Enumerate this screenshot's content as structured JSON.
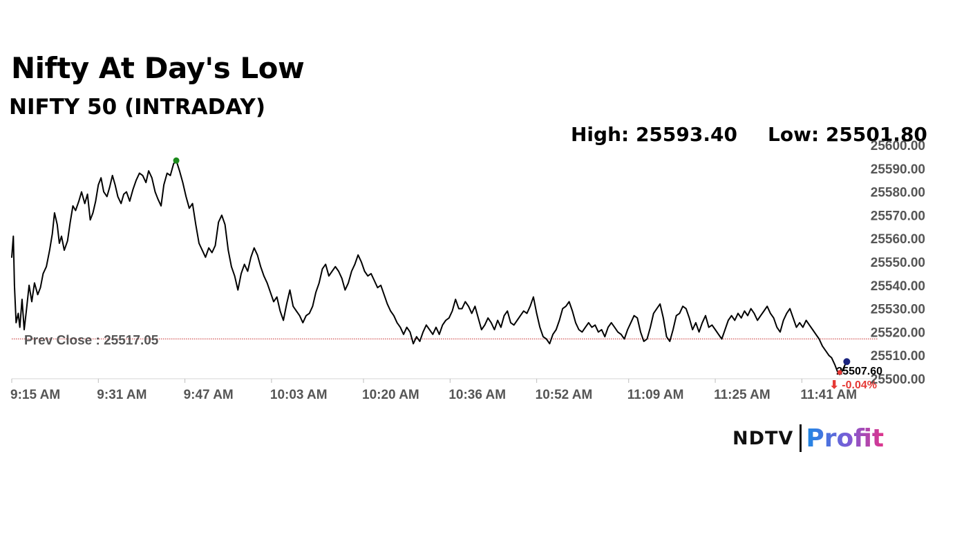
{
  "header": {
    "title": "Nifty At Day's Low",
    "subtitle": "NIFTY 50 (INTRADAY)",
    "high_text": "High: 25593.40",
    "low_text": "Low: 25501.80"
  },
  "logo": {
    "brand": "NDTV",
    "product": "Profit"
  },
  "colors": {
    "line": "#000000",
    "prev_close_line": "#c62828",
    "high_marker": "#1b8a1b",
    "low_marker": "#e53935",
    "last_marker": "#1a237e",
    "change_negative": "#e53935",
    "axis_text": "#555555"
  },
  "chart_data": {
    "type": "line",
    "title": "NIFTY 50 (INTRADAY)",
    "ylim": [
      25500,
      25600
    ],
    "y_ticks": [
      "25600.00",
      "25590.00",
      "25580.00",
      "25570.00",
      "25560.00",
      "25550.00",
      "25540.00",
      "25530.00",
      "25520.00",
      "25510.00",
      "25500.00"
    ],
    "x_ticks": [
      "9:15 AM",
      "9:31 AM",
      "9:47 AM",
      "10:03 AM",
      "10:20 AM",
      "10:36 AM",
      "10:52 AM",
      "11:09 AM",
      "11:25 AM",
      "11:41 AM"
    ],
    "x_ticks_minutes": [
      0,
      16,
      32,
      48,
      65,
      81,
      97,
      114,
      130,
      146
    ],
    "x_range_minutes": [
      0,
      160
    ],
    "prev_close": 25517.05,
    "prev_close_label": "Prev Close : 25517.05",
    "high": 25593.4,
    "low": 25501.8,
    "last": 25507.6,
    "last_label": "25507.60",
    "change_label": "⬇ -0.04%",
    "series": [
      {
        "values": [
          [
            0,
            25552
          ],
          [
            0.3,
            25561
          ],
          [
            0.5,
            25540
          ],
          [
            0.8,
            25524
          ],
          [
            1.2,
            25528
          ],
          [
            1.5,
            25522
          ],
          [
            1.9,
            25534
          ],
          [
            2.3,
            25521
          ],
          [
            2.7,
            25529
          ],
          [
            3.2,
            25540
          ],
          [
            3.7,
            25533
          ],
          [
            4.2,
            25541
          ],
          [
            4.8,
            25536
          ],
          [
            5.3,
            25539
          ],
          [
            5.8,
            25545
          ],
          [
            6.4,
            25548
          ],
          [
            7.0,
            25555
          ],
          [
            7.5,
            25562
          ],
          [
            7.9,
            25571
          ],
          [
            8.4,
            25566
          ],
          [
            8.8,
            25558
          ],
          [
            9.2,
            25561
          ],
          [
            9.7,
            25555
          ],
          [
            10.3,
            25559
          ],
          [
            10.8,
            25567
          ],
          [
            11.3,
            25574
          ],
          [
            11.8,
            25572
          ],
          [
            12.4,
            25576
          ],
          [
            12.9,
            25580
          ],
          [
            13.5,
            25575
          ],
          [
            14.0,
            25579
          ],
          [
            14.5,
            25568
          ],
          [
            15.0,
            25571
          ],
          [
            15.5,
            25576
          ],
          [
            16.0,
            25583
          ],
          [
            16.5,
            25586
          ],
          [
            17.0,
            25580
          ],
          [
            17.6,
            25578
          ],
          [
            18.1,
            25582
          ],
          [
            18.6,
            25587
          ],
          [
            19.1,
            25583
          ],
          [
            19.6,
            25578
          ],
          [
            20.2,
            25575
          ],
          [
            20.7,
            25579
          ],
          [
            21.2,
            25580
          ],
          [
            21.8,
            25576
          ],
          [
            22.4,
            25581
          ],
          [
            23.0,
            25585
          ],
          [
            23.6,
            25588
          ],
          [
            24.2,
            25587
          ],
          [
            24.8,
            25584
          ],
          [
            25.3,
            25589
          ],
          [
            25.9,
            25586
          ],
          [
            26.5,
            25580
          ],
          [
            27.0,
            25577
          ],
          [
            27.6,
            25574
          ],
          [
            28.1,
            25583
          ],
          [
            28.7,
            25588
          ],
          [
            29.3,
            25587
          ],
          [
            29.9,
            25592
          ],
          [
            30.4,
            25593.4
          ],
          [
            31.0,
            25589
          ],
          [
            31.6,
            25584
          ],
          [
            32.2,
            25578
          ],
          [
            32.8,
            25573
          ],
          [
            33.4,
            25575
          ],
          [
            34.0,
            25566
          ],
          [
            34.6,
            25558
          ],
          [
            35.2,
            25555
          ],
          [
            35.8,
            25552
          ],
          [
            36.4,
            25556
          ],
          [
            37.0,
            25554
          ],
          [
            37.6,
            25557
          ],
          [
            38.2,
            25567
          ],
          [
            38.8,
            25570
          ],
          [
            39.4,
            25566
          ],
          [
            40.0,
            25555
          ],
          [
            40.6,
            25548
          ],
          [
            41.2,
            25544
          ],
          [
            41.8,
            25538
          ],
          [
            42.4,
            25545
          ],
          [
            43.0,
            25549
          ],
          [
            43.6,
            25546
          ],
          [
            44.2,
            25552
          ],
          [
            44.8,
            25556
          ],
          [
            45.4,
            25553
          ],
          [
            46.0,
            25548
          ],
          [
            46.6,
            25544
          ],
          [
            47.2,
            25541
          ],
          [
            47.8,
            25537
          ],
          [
            48.4,
            25533
          ],
          [
            49.0,
            25535
          ],
          [
            49.6,
            25529
          ],
          [
            50.2,
            25525
          ],
          [
            50.8,
            25532
          ],
          [
            51.4,
            25538
          ],
          [
            52.0,
            25531
          ],
          [
            52.6,
            25529
          ],
          [
            53.2,
            25527
          ],
          [
            53.8,
            25524
          ],
          [
            54.4,
            25527
          ],
          [
            55.0,
            25528
          ],
          [
            55.6,
            25531
          ],
          [
            56.2,
            25537
          ],
          [
            56.8,
            25541
          ],
          [
            57.4,
            25547
          ],
          [
            58.0,
            25549
          ],
          [
            58.6,
            25544
          ],
          [
            59.2,
            25546
          ],
          [
            59.8,
            25548
          ],
          [
            60.4,
            25546
          ],
          [
            61.0,
            25543
          ],
          [
            61.6,
            25538
          ],
          [
            62.2,
            25541
          ],
          [
            62.8,
            25546
          ],
          [
            63.4,
            25549
          ],
          [
            64.0,
            25553
          ],
          [
            64.6,
            25550
          ],
          [
            65.2,
            25546
          ],
          [
            65.8,
            25544
          ],
          [
            66.4,
            25545
          ],
          [
            67.0,
            25542
          ],
          [
            67.6,
            25539
          ],
          [
            68.2,
            25540
          ],
          [
            68.8,
            25536
          ],
          [
            69.4,
            25532
          ],
          [
            70.0,
            25529
          ],
          [
            70.6,
            25527
          ],
          [
            71.2,
            25524
          ],
          [
            71.8,
            25522
          ],
          [
            72.4,
            25519
          ],
          [
            73.0,
            25522
          ],
          [
            73.6,
            25520
          ],
          [
            74.2,
            25515
          ],
          [
            74.8,
            25518
          ],
          [
            75.4,
            25516
          ],
          [
            76.0,
            25520
          ],
          [
            76.6,
            25523
          ],
          [
            77.2,
            25521
          ],
          [
            77.8,
            25519
          ],
          [
            78.4,
            25522
          ],
          [
            79.0,
            25519
          ],
          [
            79.6,
            25523
          ],
          [
            80.2,
            25525
          ],
          [
            80.8,
            25526
          ],
          [
            81.4,
            25529
          ],
          [
            82.0,
            25534
          ],
          [
            82.6,
            25530
          ],
          [
            83.2,
            25530
          ],
          [
            83.8,
            25533
          ],
          [
            84.4,
            25531
          ],
          [
            85.0,
            25528
          ],
          [
            85.6,
            25531
          ],
          [
            86.2,
            25526
          ],
          [
            86.8,
            25521
          ],
          [
            87.4,
            25523
          ],
          [
            88.0,
            25526
          ],
          [
            88.6,
            25524
          ],
          [
            89.2,
            25521
          ],
          [
            89.8,
            25525
          ],
          [
            90.4,
            25522
          ],
          [
            91.0,
            25527
          ],
          [
            91.6,
            25529
          ],
          [
            92.2,
            25524
          ],
          [
            92.8,
            25523
          ],
          [
            93.4,
            25525
          ],
          [
            94.0,
            25527
          ],
          [
            94.6,
            25529
          ],
          [
            95.2,
            25528
          ],
          [
            95.8,
            25531
          ],
          [
            96.4,
            25535
          ],
          [
            97.0,
            25528
          ],
          [
            97.6,
            25522
          ],
          [
            98.2,
            25518
          ],
          [
            98.8,
            25517
          ],
          [
            99.4,
            25515
          ],
          [
            100.0,
            25519
          ],
          [
            100.6,
            25521
          ],
          [
            101.2,
            25525
          ],
          [
            101.8,
            25530
          ],
          [
            102.4,
            25531
          ],
          [
            103.0,
            25533
          ],
          [
            103.6,
            25529
          ],
          [
            104.2,
            25524
          ],
          [
            104.8,
            25521
          ],
          [
            105.4,
            25520
          ],
          [
            106.0,
            25522
          ],
          [
            106.6,
            25524
          ],
          [
            107.2,
            25522
          ],
          [
            107.8,
            25523
          ],
          [
            108.4,
            25520
          ],
          [
            109.0,
            25521
          ],
          [
            109.6,
            25518
          ],
          [
            110.2,
            25522
          ],
          [
            110.8,
            25524
          ],
          [
            111.4,
            25522
          ],
          [
            112.0,
            25520
          ],
          [
            112.6,
            25519
          ],
          [
            113.2,
            25517
          ],
          [
            113.8,
            25521
          ],
          [
            114.4,
            25524
          ],
          [
            115.0,
            25527
          ],
          [
            115.6,
            25526
          ],
          [
            116.2,
            25520
          ],
          [
            116.8,
            25516
          ],
          [
            117.4,
            25517
          ],
          [
            118.0,
            25522
          ],
          [
            118.6,
            25528
          ],
          [
            119.2,
            25530
          ],
          [
            119.8,
            25532
          ],
          [
            120.4,
            25526
          ],
          [
            121.0,
            25518
          ],
          [
            121.6,
            25516
          ],
          [
            122.2,
            25521
          ],
          [
            122.8,
            25527
          ],
          [
            123.4,
            25528
          ],
          [
            124.0,
            25531
          ],
          [
            124.6,
            25530
          ],
          [
            125.2,
            25526
          ],
          [
            125.8,
            25521
          ],
          [
            126.4,
            25524
          ],
          [
            127.0,
            25520
          ],
          [
            127.6,
            25524
          ],
          [
            128.2,
            25527
          ],
          [
            128.8,
            25522
          ],
          [
            129.4,
            25523
          ],
          [
            130.0,
            25521
          ],
          [
            130.6,
            25519
          ],
          [
            131.2,
            25517
          ],
          [
            131.8,
            25521
          ],
          [
            132.4,
            25525
          ],
          [
            133.0,
            25527
          ],
          [
            133.6,
            25525
          ],
          [
            134.2,
            25528
          ],
          [
            134.8,
            25526
          ],
          [
            135.4,
            25529
          ],
          [
            136.0,
            25527
          ],
          [
            136.6,
            25530
          ],
          [
            137.2,
            25528
          ],
          [
            137.8,
            25525
          ],
          [
            138.4,
            25527
          ],
          [
            139.0,
            25529
          ],
          [
            139.6,
            25531
          ],
          [
            140.2,
            25528
          ],
          [
            140.8,
            25526
          ],
          [
            141.4,
            25522
          ],
          [
            142.0,
            25520
          ],
          [
            142.6,
            25525
          ],
          [
            143.2,
            25528
          ],
          [
            143.8,
            25530
          ],
          [
            144.4,
            25526
          ],
          [
            145.0,
            25522
          ],
          [
            145.6,
            25524
          ],
          [
            146.2,
            25522
          ],
          [
            146.8,
            25525
          ],
          [
            147.4,
            25523
          ],
          [
            148.0,
            25521
          ],
          [
            148.6,
            25519
          ],
          [
            149.2,
            25517
          ],
          [
            149.8,
            25514
          ],
          [
            150.4,
            25512
          ],
          [
            151.0,
            25510
          ],
          [
            151.5,
            25509
          ],
          [
            152.1,
            25506
          ],
          [
            152.6,
            25503
          ],
          [
            153.0,
            25501.8
          ],
          [
            153.4,
            25503
          ],
          [
            153.8,
            25505
          ],
          [
            154.3,
            25507.6
          ]
        ]
      }
    ]
  }
}
